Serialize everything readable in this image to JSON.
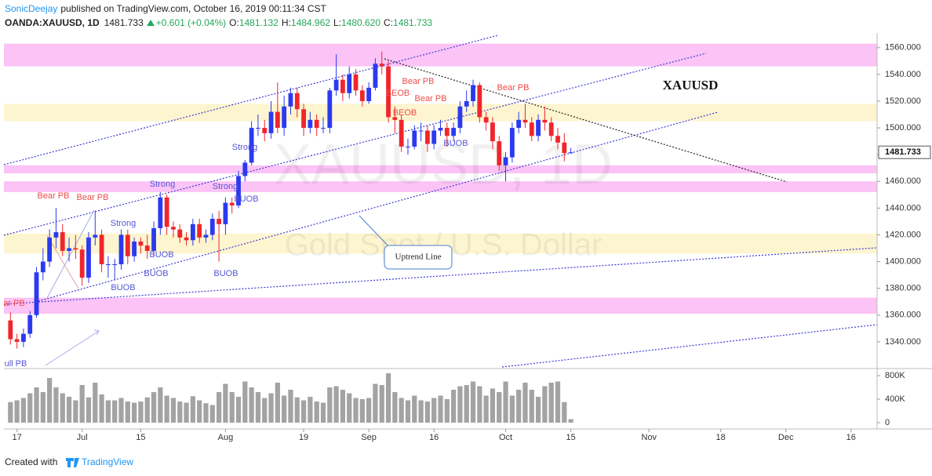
{
  "header": {
    "author": "SonicDeejay",
    "published": "published on TradingView.com, October 16, 2019 00:11:34 CST",
    "symbol": "OANDA:XAUUSD, 1D",
    "last": "1481.733",
    "change": "+0.601 (+0.04%)",
    "open_label": "O:",
    "open": "1481.132",
    "high_label": "H:",
    "high": "1484.962",
    "low_label": "L:",
    "low": "1480.620",
    "close_label": "C:",
    "close": "1481.733"
  },
  "chart_data": [
    {
      "type": "candlestick",
      "title": "XAUUSD",
      "watermark": "XAUUSD, 1D",
      "subtitle": "Gold Spot / U.S. Dollar",
      "callout": "Uptrend Line",
      "up_color": "#2b3af0",
      "down_color": "#f0262c",
      "open": [
        1356,
        1342,
        1340,
        1346,
        1360,
        1392,
        1400,
        1418,
        1422,
        1408,
        1410,
        1409,
        1388,
        1418,
        1420,
        1398,
        1398,
        1398,
        1420,
        1404,
        1415,
        1412,
        1408,
        1425,
        1448,
        1426,
        1424,
        1418,
        1416,
        1428,
        1418,
        1420,
        1432,
        1428,
        1444,
        1442,
        1464,
        1474,
        1500,
        1500,
        1496,
        1512,
        1500,
        1516,
        1526,
        1514,
        1500,
        1506,
        1500,
        1500,
        1528,
        1536,
        1526,
        1540,
        1528,
        1520,
        1530,
        1548,
        1546,
        1508,
        1506,
        1486,
        1486,
        1498,
        1498,
        1488,
        1498,
        1500,
        1494,
        1500,
        1516,
        1520,
        1532,
        1508,
        1504,
        1490,
        1472,
        1478,
        1500,
        1506,
        1504,
        1494,
        1506,
        1504,
        1494,
        1489,
        1481.132
      ],
      "high": [
        1362,
        1346,
        1350,
        1363,
        1396,
        1410,
        1424,
        1440,
        1428,
        1418,
        1420,
        1412,
        1422,
        1438,
        1424,
        1404,
        1402,
        1424,
        1424,
        1418,
        1418,
        1420,
        1430,
        1452,
        1450,
        1430,
        1428,
        1422,
        1432,
        1432,
        1424,
        1436,
        1438,
        1448,
        1448,
        1468,
        1476,
        1505,
        1510,
        1506,
        1520,
        1534,
        1524,
        1530,
        1530,
        1518,
        1512,
        1510,
        1508,
        1530,
        1555,
        1540,
        1546,
        1544,
        1532,
        1534,
        1552,
        1557,
        1550,
        1516,
        1510,
        1492,
        1502,
        1504,
        1502,
        1502,
        1506,
        1504,
        1504,
        1520,
        1528,
        1536,
        1534,
        1512,
        1508,
        1494,
        1482,
        1504,
        1512,
        1518,
        1508,
        1510,
        1516,
        1508,
        1500,
        1496,
        1484.962
      ],
      "low": [
        1338,
        1335,
        1336,
        1343,
        1358,
        1386,
        1396,
        1410,
        1404,
        1400,
        1402,
        1382,
        1384,
        1412,
        1392,
        1388,
        1386,
        1394,
        1398,
        1400,
        1406,
        1402,
        1404,
        1420,
        1420,
        1418,
        1414,
        1412,
        1412,
        1414,
        1414,
        1416,
        1400,
        1420,
        1436,
        1440,
        1460,
        1472,
        1494,
        1490,
        1492,
        1496,
        1494,
        1510,
        1508,
        1494,
        1496,
        1494,
        1496,
        1496,
        1524,
        1520,
        1522,
        1524,
        1516,
        1518,
        1528,
        1540,
        1504,
        1496,
        1482,
        1480,
        1484,
        1490,
        1482,
        1484,
        1494,
        1486,
        1490,
        1496,
        1512,
        1516,
        1504,
        1498,
        1484,
        1468,
        1460,
        1474,
        1496,
        1500,
        1490,
        1490,
        1498,
        1490,
        1484,
        1475,
        1480.62
      ],
      "close": [
        1342,
        1340,
        1346,
        1360,
        1392,
        1400,
        1418,
        1422,
        1408,
        1410,
        1409,
        1388,
        1418,
        1420,
        1398,
        1398,
        1398,
        1420,
        1404,
        1415,
        1412,
        1408,
        1425,
        1448,
        1426,
        1424,
        1418,
        1416,
        1428,
        1418,
        1420,
        1432,
        1428,
        1444,
        1442,
        1464,
        1474,
        1500,
        1500,
        1496,
        1512,
        1500,
        1516,
        1526,
        1514,
        1500,
        1506,
        1500,
        1500,
        1528,
        1536,
        1526,
        1540,
        1528,
        1520,
        1530,
        1548,
        1546,
        1508,
        1506,
        1486,
        1486,
        1498,
        1498,
        1488,
        1498,
        1500,
        1494,
        1500,
        1516,
        1520,
        1532,
        1508,
        1504,
        1490,
        1472,
        1478,
        1500,
        1506,
        1504,
        1494,
        1506,
        1504,
        1494,
        1489,
        1481.132,
        1481.733
      ],
      "xlim": [
        -1,
        133
      ],
      "ylim": [
        1320,
        1571
      ],
      "yticks": [
        {
          "value": 1340,
          "label": "1340.000"
        },
        {
          "value": 1360,
          "label": "1360.000"
        },
        {
          "value": 1380,
          "label": "1380.000"
        },
        {
          "value": 1400,
          "label": "1400.000"
        },
        {
          "value": 1420,
          "label": "1420.000"
        },
        {
          "value": 1440,
          "label": "1440.000"
        },
        {
          "value": 1460,
          "label": "1460.000"
        },
        {
          "value": 1480,
          "label": "1480.000"
        },
        {
          "value": 1500,
          "label": "1500.000"
        },
        {
          "value": 1520,
          "label": "1520.000"
        },
        {
          "value": 1540,
          "label": "1540.000"
        },
        {
          "value": 1560,
          "label": "1560.000"
        }
      ],
      "zones": [
        {
          "from": 1546,
          "to": 1563,
          "color": "#fbc3f6"
        },
        {
          "from": 1505,
          "to": 1518,
          "color": "#fdf5cf"
        },
        {
          "from": 1466,
          "to": 1472,
          "color": "#fbc3f6"
        },
        {
          "from": 1452,
          "to": 1460,
          "color": "#fbc3f6"
        },
        {
          "from": 1406,
          "to": 1421,
          "color": "#fdf5cf"
        },
        {
          "from": 1361,
          "to": 1373,
          "color": "#fbc3f6"
        }
      ],
      "annotations": [
        "Bear PB",
        "Bear PB",
        "Strong",
        "Strong",
        "Strong",
        "Strong",
        "BUOB",
        "BUOB",
        "BUOB",
        "BUOB",
        "BUOB",
        "Bear PB",
        "BEOB",
        "Bear PB",
        "BEOB",
        "BUOB",
        "Bear PB",
        "ar PB",
        "ull PB"
      ]
    },
    {
      "type": "bar",
      "color": "#a3a3a3",
      "values": [
        350000,
        380000,
        420000,
        500000,
        600000,
        520000,
        760000,
        600000,
        500000,
        440000,
        380000,
        640000,
        430000,
        680000,
        480000,
        380000,
        380000,
        420000,
        360000,
        340000,
        360000,
        430000,
        520000,
        600000,
        460000,
        420000,
        360000,
        340000,
        450000,
        380000,
        330000,
        300000,
        520000,
        660000,
        520000,
        440000,
        700000,
        600000,
        520000,
        420000,
        500000,
        680000,
        460000,
        560000,
        430000,
        380000,
        440000,
        360000,
        340000,
        600000,
        620000,
        560000,
        500000,
        420000,
        400000,
        420000,
        660000,
        640000,
        840000,
        520000,
        420000,
        380000,
        460000,
        380000,
        360000,
        420000,
        460000,
        400000,
        560000,
        620000,
        640000,
        700000,
        620000,
        460000,
        580000,
        520000,
        700000,
        460000,
        560000,
        680000,
        560000,
        440000,
        620000,
        680000,
        700000,
        350000,
        60000
      ],
      "xlim": [
        -1,
        133
      ],
      "ylim": [
        -80000,
        920000
      ],
      "yticks": [
        0,
        {
          "value": 400000,
          "label": "400K"
        },
        {
          "value": 800000,
          "label": "800K"
        }
      ],
      "xticks": [
        {
          "value": 1,
          "label": "17"
        },
        {
          "value": 11,
          "label": "Jul"
        },
        {
          "value": 20,
          "label": "15"
        },
        {
          "value": 33,
          "label": "Aug"
        },
        {
          "value": 45,
          "label": "19"
        },
        {
          "value": 55,
          "label": "Sep"
        },
        {
          "value": 65,
          "label": "16"
        },
        {
          "value": 76,
          "label": "Oct"
        },
        {
          "value": 86,
          "label": "15"
        },
        {
          "value": 98,
          "label": "Nov"
        },
        {
          "value": 109,
          "label": "18"
        },
        {
          "value": 119,
          "label": "Dec"
        },
        {
          "value": 129,
          "label": "16"
        }
      ]
    }
  ],
  "footer": {
    "created": "Created with",
    "brand": "TradingView"
  }
}
